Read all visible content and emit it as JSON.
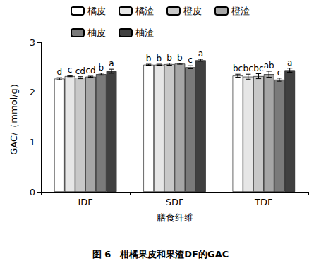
{
  "chart_data": {
    "type": "bar",
    "title": "图 6　柑橘果皮和果渣DF的GAC",
    "x_label": "膳食纤维",
    "y_label": "GAC/（mmol/g）",
    "categories": [
      "IDF",
      "SDF",
      "TDF"
    ],
    "series": [
      {
        "name": "橘皮",
        "color": "#ffffff",
        "values": [
          2.27,
          2.55,
          2.33
        ],
        "errors": [
          0.02,
          0.01,
          0.03
        ],
        "annotations": [
          "d",
          "b",
          "bc"
        ]
      },
      {
        "name": "橘渣",
        "color": "#e6e6e6",
        "values": [
          2.32,
          2.55,
          2.31
        ],
        "errors": [
          0.01,
          0.01,
          0.05
        ],
        "annotations": [
          "c",
          "b",
          "bc"
        ]
      },
      {
        "name": "橙皮",
        "color": "#c8c8c8",
        "values": [
          2.29,
          2.56,
          2.32
        ],
        "errors": [
          0.02,
          0.02,
          0.05
        ],
        "annotations": [
          "cd",
          "b",
          "bc"
        ]
      },
      {
        "name": "橙渣",
        "color": "#a6a6a6",
        "values": [
          2.31,
          2.57,
          2.36
        ],
        "errors": [
          0.01,
          0.01,
          0.06
        ],
        "annotations": [
          "cd",
          "b",
          "ab"
        ]
      },
      {
        "name": "柚皮",
        "color": "#7a7a7a",
        "values": [
          2.36,
          2.5,
          2.25
        ],
        "errors": [
          0.02,
          0.03,
          0.03
        ],
        "annotations": [
          "b",
          "c",
          "c"
        ]
      },
      {
        "name": "柚渣",
        "color": "#404040",
        "values": [
          2.42,
          2.64,
          2.44
        ],
        "errors": [
          0.04,
          0.02,
          0.04
        ],
        "annotations": [
          "a",
          "a",
          "a"
        ]
      }
    ],
    "ylim": [
      0,
      3
    ],
    "yticks": [
      0,
      1,
      2,
      3
    ],
    "grid": false,
    "legend": "top"
  }
}
